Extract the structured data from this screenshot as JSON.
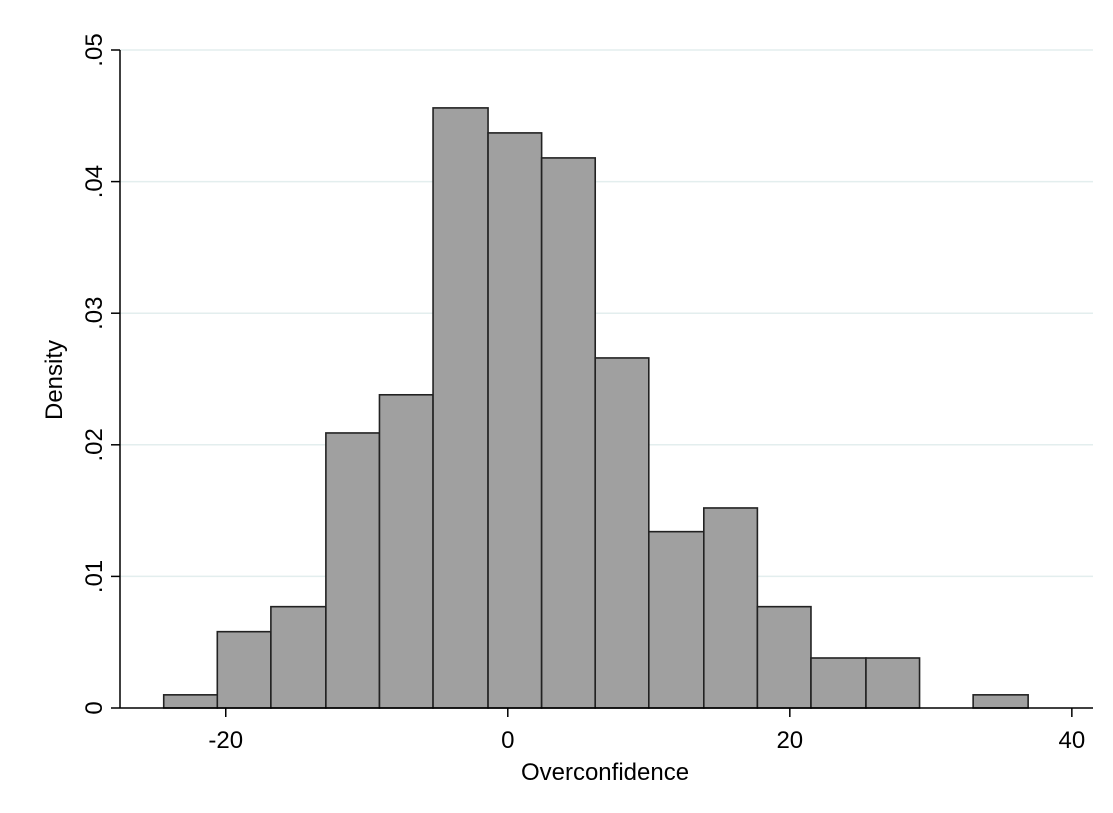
{
  "chart_data": {
    "type": "bar",
    "subtype": "histogram",
    "title": "",
    "xlabel": "Overconfidence",
    "ylabel": "Density",
    "xlim": [
      -27.5,
      41.5
    ],
    "ylim": [
      0,
      0.05
    ],
    "xticks": [
      -20,
      0,
      20,
      40
    ],
    "xtick_labels": [
      "-20",
      "0",
      "20",
      "40"
    ],
    "yticks": [
      0,
      0.01,
      0.02,
      0.03,
      0.04,
      0.05
    ],
    "ytick_labels": [
      "0",
      ".01",
      ".02",
      ".03",
      ".04",
      ".05"
    ],
    "grid": {
      "horizontal": true,
      "vertical": false
    },
    "bin_edges": [
      -24.4,
      -20.6,
      -16.8,
      -12.9,
      -9.1,
      -5.3,
      -1.4,
      2.4,
      6.2,
      10.0,
      13.9,
      17.7,
      21.5,
      25.4,
      29.2,
      33.0,
      36.9
    ],
    "values": [
      0.001,
      0.0058,
      0.0077,
      0.0209,
      0.0238,
      0.0456,
      0.0437,
      0.0418,
      0.0266,
      0.0134,
      0.0152,
      0.0077,
      0.0038,
      0.0038,
      0.0,
      0.001
    ],
    "colors": {
      "bar_fill": "#a0a0a0",
      "bar_stroke": "#222222",
      "grid": "#e3eeee",
      "axis": "#000000"
    }
  }
}
